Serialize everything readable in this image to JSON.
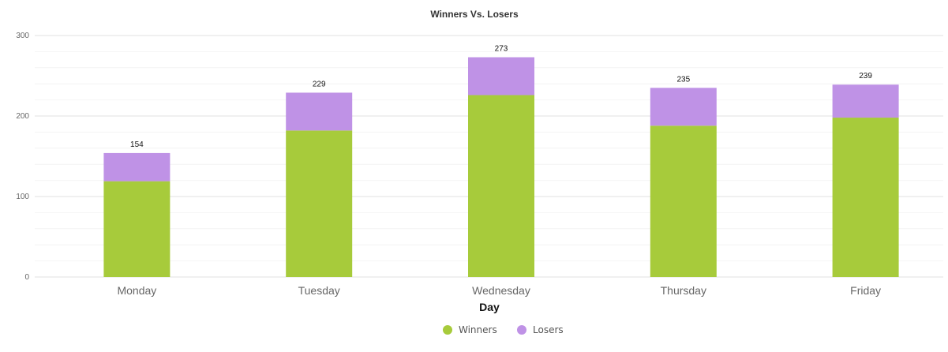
{
  "chart_data": {
    "type": "bar",
    "stacked": true,
    "title": "Winners Vs. Losers",
    "xlabel": "Day",
    "ylabel": "",
    "ylim": [
      0,
      300
    ],
    "yticks": [
      "0",
      "100",
      "200",
      "300"
    ],
    "grid": true,
    "legend_position": "bottom-center",
    "categories": [
      "Monday",
      "Tuesday",
      "Wednesday",
      "Thursday",
      "Friday"
    ],
    "series": [
      {
        "name": "Winners",
        "color": "#a7cb3b",
        "values": [
          119,
          182,
          226,
          188,
          198
        ]
      },
      {
        "name": "Losers",
        "color": "#bf92e6",
        "values": [
          35,
          47,
          47,
          47,
          41
        ]
      }
    ],
    "totals": [
      "154",
      "229",
      "273",
      "235",
      "239"
    ]
  }
}
